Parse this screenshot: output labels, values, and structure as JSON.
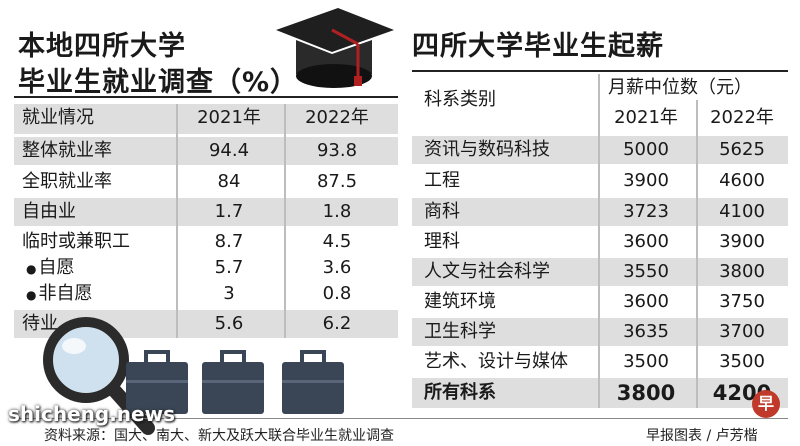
{
  "left": {
    "title_line1": "本地四所大学",
    "title_line2": "毕业生就业调查（%）",
    "headers": [
      "就业情况",
      "2021年",
      "2022年"
    ],
    "rows": [
      {
        "label": "整体就业率",
        "y2021": "94.4",
        "y2022": "93.8"
      },
      {
        "label": "全职就业率",
        "y2021": "84",
        "y2022": "87.5"
      },
      {
        "label": "自由业",
        "y2021": "1.7",
        "y2022": "1.8"
      },
      {
        "label": "临时或兼职工",
        "y2021": "8.7",
        "y2022": "4.5"
      },
      {
        "label": "自愿",
        "y2021": "5.7",
        "y2022": "3.6"
      },
      {
        "label": "非自愿",
        "y2021": "3",
        "y2022": "0.8"
      },
      {
        "label": "待业",
        "y2021": "5.6",
        "y2022": "6.2"
      }
    ]
  },
  "right": {
    "title": "四所大学毕业生起薪",
    "header_category": "科系类别",
    "header_median": "月薪中位数（元）",
    "header_years": [
      "2021年",
      "2022年"
    ],
    "rows": [
      {
        "label": "资讯与数码科技",
        "y2021": "5000",
        "y2022": "5625"
      },
      {
        "label": "工程",
        "y2021": "3900",
        "y2022": "4600"
      },
      {
        "label": "商科",
        "y2021": "3723",
        "y2022": "4100"
      },
      {
        "label": "理科",
        "y2021": "3600",
        "y2022": "3900"
      },
      {
        "label": "人文与社会科学",
        "y2021": "3550",
        "y2022": "3800"
      },
      {
        "label": "建筑环境",
        "y2021": "3600",
        "y2022": "3750"
      },
      {
        "label": "卫生科学",
        "y2021": "3635",
        "y2022": "3700"
      },
      {
        "label": "艺术、设计与媒体",
        "y2021": "3500",
        "y2022": "3500"
      },
      {
        "label": "所有科系",
        "y2021": "3800",
        "y2022": "4200"
      }
    ]
  },
  "footer": {
    "source": "资料来源：国大、南大、新大及跃大联合毕业生就业调查",
    "credit": "早报图表 / 卢芳楷",
    "watermark": "shicheng.news",
    "logo_char": "早"
  },
  "colors": {
    "band": "#dedede",
    "rule": "#222222",
    "briefcase": "#3a4656",
    "cap": "#1f1f1f",
    "logo": "#c0392b"
  },
  "icons": [
    "graduation-cap-icon",
    "magnifying-glass-icon",
    "briefcase-icon"
  ]
}
